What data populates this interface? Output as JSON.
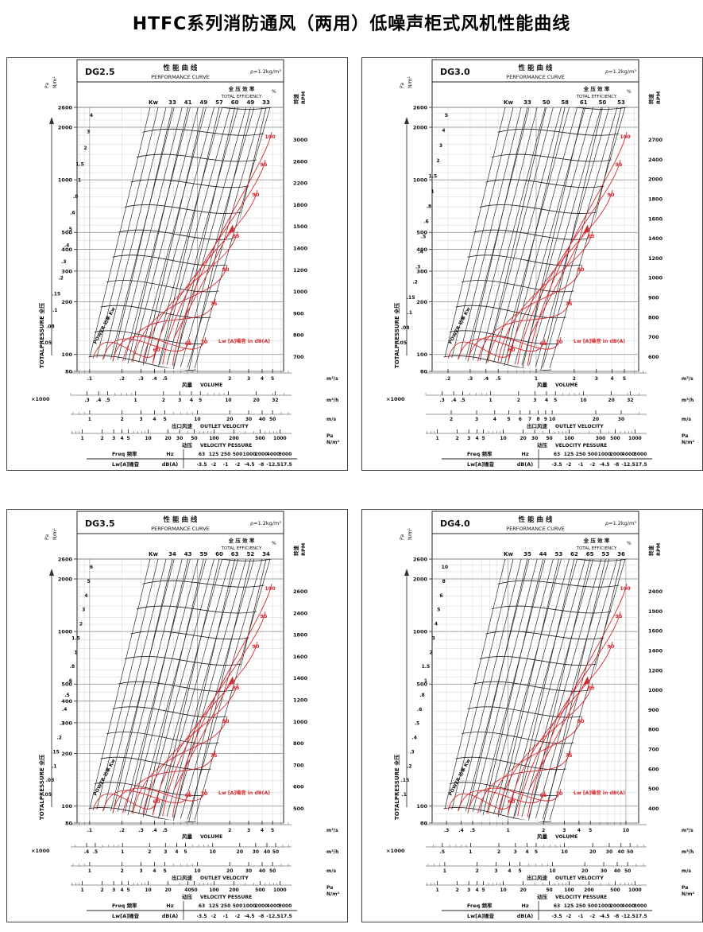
{
  "page": {
    "title": "HTFC系列消防通风（两用）低噪声柜式风机性能曲线"
  },
  "colors": {
    "accent_red": "#d9282d",
    "ink": "#111111",
    "grid_minor": "#c9c9c9",
    "grid_major": "#8a8a8a"
  },
  "common": {
    "perf_title_cn": "性 能 曲 线",
    "perf_title_en": "PERFORMANCE CURVE",
    "density": "ρ=1.2kg/m³",
    "eff_cn": "全 压 效 率",
    "eff_en": "TOTAL EFFICIENCY",
    "pct": "%",
    "kw": "Kw",
    "pa_unit": "Pa",
    "nm2_unit": "N/m²",
    "left_axis_label": "TOTALPRESSURE 全压",
    "right_axis_cn": "转速",
    "right_axis_en": "RPM",
    "power_label": "POWER 功率 Kw",
    "volume_cn": "风量",
    "volume_en": "VOLUME",
    "x1000": "×1000",
    "m3s": "m³/s",
    "m3h": "m³/h",
    "ms": "m/s",
    "outlet_cn": "出口风速",
    "outlet_en": "OUTLET  VELOCITY",
    "dyn_cn": "动压",
    "dyn_en": "VELOCITY  PESSURE",
    "lw_note": "Lw [A]噪音   in dB(A)",
    "red_labels": [
      "60",
      "65",
      "70",
      "75",
      "80",
      "85",
      "90",
      "95",
      "100"
    ],
    "noise_table": {
      "freq_label": "Freq 频率",
      "freq_unit": "Hz",
      "freqs": [
        "63",
        "125",
        "250",
        "500",
        "1000",
        "2000",
        "4000",
        "8000"
      ],
      "lw_label": "Lw[A]噪音",
      "lw_unit": "dB(A)",
      "lws": [
        "-3.5",
        "-2",
        "-1",
        "-2",
        "-4.5",
        "-8",
        "-12.5",
        "-17.5"
      ]
    }
  },
  "panels": [
    {
      "model": "DG2.5",
      "eff": [
        "33",
        "41",
        "49",
        "57",
        "60",
        "49",
        "33"
      ],
      "power": [
        "4",
        "3",
        "2",
        "1.5",
        "1",
        ".8",
        ".6",
        ".5",
        ".4",
        ".3",
        ".2",
        ".15",
        ".1",
        ".08",
        ".05"
      ],
      "rpm": [
        "3000",
        "2600",
        "2200",
        "1800",
        "1500",
        "1400",
        "1200",
        "1000",
        "900",
        "800",
        "700"
      ],
      "pressure": [
        "2600",
        "2000",
        "1000",
        "500",
        "400",
        "300",
        "200",
        "100",
        "80"
      ],
      "vol": [
        ".1",
        ".2",
        ".3",
        ".4",
        ".5",
        "2",
        "3",
        "4",
        "5"
      ],
      "m3h": [
        ".3",
        ".4",
        ".5",
        "1",
        "2",
        "3",
        "4",
        "5",
        "10",
        "20",
        "32"
      ],
      "ms": [
        "1",
        "2",
        "3",
        "4",
        "5",
        "10",
        "20",
        "30",
        "40",
        "50"
      ],
      "pa": [
        "1",
        "2",
        "3",
        "4",
        "5",
        "10",
        "20",
        "30",
        "50",
        "100",
        "200",
        "500",
        "1000"
      ]
    },
    {
      "model": "DG3.0",
      "eff": [
        "33",
        "50",
        "58",
        "61",
        "50",
        "53"
      ],
      "power": [
        "5",
        "4",
        "3",
        "2",
        "1.5",
        "1",
        ".8",
        ".6",
        ".5",
        ".4",
        ".3",
        ".2",
        ".15",
        ".1",
        ".08",
        ".05"
      ],
      "rpm": [
        "2700",
        "2400",
        "2000",
        "1800",
        "1600",
        "1400",
        "1200",
        "1000",
        "900",
        "800",
        "700",
        "600"
      ],
      "pressure": [
        "2600",
        "2000",
        "1000",
        "500",
        "400",
        "300",
        "200",
        "100",
        "80"
      ],
      "vol": [
        ".2",
        ".3",
        ".4",
        ".5",
        "1",
        "2",
        "3",
        "4",
        "5"
      ],
      "m3h": [
        ".3",
        ".4",
        ".5",
        "1",
        "2",
        "3",
        "4",
        "5",
        "10",
        "20",
        "32"
      ],
      "ms": [
        "2",
        "3",
        "4",
        "5",
        "6",
        "7",
        "8",
        "9",
        "10",
        "20",
        "30"
      ],
      "pa": [
        "1",
        "2",
        "3",
        "4",
        "5",
        "10",
        "20",
        "30",
        "50",
        "100",
        "300",
        "500",
        "1000"
      ]
    },
    {
      "model": "DG3.5",
      "eff": [
        "34",
        "43",
        "59",
        "60",
        "63",
        "52",
        "34"
      ],
      "power": [
        "6",
        "5",
        "4",
        "3",
        "2",
        "1.5",
        "1",
        ".8",
        ".6",
        ".5",
        ".4",
        ".3",
        ".2",
        ".15",
        ".1",
        ".08",
        ".05"
      ],
      "rpm": [
        "2600",
        "2400",
        "1800",
        "1600",
        "1400",
        "1200",
        "1000",
        "800",
        "700",
        "600",
        "500"
      ],
      "pressure": [
        "2600",
        "2000",
        "1000",
        "500",
        "400",
        "300",
        "200",
        "100",
        "80"
      ],
      "vol": [
        ".1",
        ".2",
        ".3",
        ".4",
        ".5",
        "2",
        "3",
        "4",
        "5"
      ],
      "m3h": [
        ".4",
        ".5",
        "1",
        "2",
        "3",
        "4",
        "5",
        "10",
        "20",
        "30",
        "40",
        "50"
      ],
      "ms": [
        "1",
        "2",
        "3",
        "4",
        "5",
        "10",
        "20",
        "30",
        "40",
        "50"
      ],
      "pa": [
        "1",
        "2",
        "3",
        "4",
        "5",
        "10",
        "20",
        "40",
        "50",
        "100",
        "200",
        "500",
        "1000"
      ]
    },
    {
      "model": "DG4.0",
      "eff": [
        "35",
        "44",
        "53",
        "62",
        "65",
        "53",
        "36"
      ],
      "power": [
        "10",
        "8",
        "6",
        "5",
        "4",
        "3",
        "2",
        "1.5",
        "1",
        ".8",
        ".6",
        ".5",
        ".4",
        ".3",
        ".2",
        ".15",
        ".1"
      ],
      "rpm": [
        "2400",
        "1900",
        "1600",
        "1400",
        "1200",
        "1000",
        "900",
        "800",
        "700",
        "600",
        "500",
        "400"
      ],
      "pressure": [
        "2600",
        "2000",
        "1000",
        "500",
        "100",
        "80"
      ],
      "vol": [
        ".3",
        ".4",
        ".5",
        "1",
        "2",
        "3",
        "4",
        "5",
        "10"
      ],
      "m3h": [
        ".5",
        "1",
        "2",
        "3",
        "4",
        "5",
        "10",
        "20",
        "30",
        "40",
        "50"
      ],
      "ms": [
        "1",
        "2",
        "3",
        "4",
        "5",
        "10",
        "20",
        "30",
        "40",
        "50"
      ],
      "pa": [
        "1",
        "2",
        "3",
        "4",
        "5",
        "10",
        "20",
        "50",
        "100",
        "200",
        "500",
        "1000"
      ]
    }
  ],
  "chart_data": [
    {
      "type": "line",
      "model": "DG2.5",
      "title": "性能曲线 PERFORMANCE CURVE",
      "air_density": "ρ=1.2kg/m³",
      "x_axis": {
        "label": "风量 VOLUME",
        "unit_primary": "m³/s",
        "ticks_m3s": [
          0.1,
          0.2,
          0.3,
          0.4,
          0.5,
          2,
          3,
          4,
          5
        ],
        "unit_secondary": "×1000 m³/h",
        "ticks_m3h": [
          0.3,
          0.4,
          0.5,
          1,
          2,
          3,
          4,
          5,
          10,
          20,
          32
        ],
        "scale": "log"
      },
      "y_axis": {
        "label": "全压 TOTALPRESSURE",
        "unit": "Pa (N/m²)",
        "ticks": [
          2600,
          2000,
          1000,
          500,
          400,
          300,
          200,
          100,
          80
        ],
        "scale": "log"
      },
      "rpm_axis": {
        "label": "转速 RPM",
        "ticks": [
          3000,
          2600,
          2200,
          1800,
          1500,
          1400,
          1200,
          1000,
          900,
          800,
          700
        ]
      },
      "total_efficiency_pct": [
        33,
        41,
        49,
        57,
        60,
        49,
        33
      ],
      "efficiency_contours_pct": [
        60,
        65,
        70,
        75,
        80,
        85,
        90,
        95,
        100
      ],
      "shaft_power_kw": [
        4,
        3,
        2,
        1.5,
        1,
        0.8,
        0.6,
        0.5,
        0.4,
        0.3,
        0.2,
        0.15,
        0.1,
        0.08,
        0.05
      ],
      "outlet_velocity_ms": [
        1,
        2,
        3,
        4,
        5,
        10,
        20,
        30,
        40,
        50
      ],
      "velocity_pressure_pa": [
        1,
        2,
        3,
        4,
        5,
        10,
        20,
        30,
        50,
        100,
        200,
        500,
        1000
      ],
      "noise_correction": {
        "freq_hz": [
          63,
          125,
          250,
          500,
          1000,
          2000,
          4000,
          8000
        ],
        "lw_dba": [
          -3.5,
          -2,
          -1,
          -2,
          -4.5,
          -8,
          -12.5,
          -17.5
        ]
      }
    },
    {
      "type": "line",
      "model": "DG3.0",
      "title": "性能曲线 PERFORMANCE CURVE",
      "air_density": "ρ=1.2kg/m³",
      "x_axis": {
        "label": "风量 VOLUME",
        "unit_primary": "m³/s",
        "ticks_m3s": [
          0.2,
          0.3,
          0.4,
          0.5,
          1,
          2,
          3,
          4,
          5
        ],
        "unit_secondary": "×1000 m³/h",
        "ticks_m3h": [
          0.3,
          0.4,
          0.5,
          1,
          2,
          3,
          4,
          5,
          10,
          20,
          32
        ],
        "scale": "log"
      },
      "y_axis": {
        "label": "全压 TOTALPRESSURE",
        "unit": "Pa (N/m²)",
        "ticks": [
          2600,
          2000,
          1000,
          500,
          400,
          300,
          200,
          100,
          80
        ],
        "scale": "log"
      },
      "rpm_axis": {
        "label": "转速 RPM",
        "ticks": [
          2700,
          2400,
          2000,
          1800,
          1600,
          1400,
          1200,
          1000,
          900,
          800,
          700,
          600
        ]
      },
      "total_efficiency_pct": [
        33,
        50,
        58,
        61,
        50,
        53
      ],
      "efficiency_contours_pct": [
        60,
        65,
        70,
        75,
        80,
        85,
        90,
        95,
        100
      ],
      "shaft_power_kw": [
        5,
        4,
        3,
        2,
        1.5,
        1,
        0.8,
        0.6,
        0.5,
        0.4,
        0.3,
        0.2,
        0.15,
        0.1,
        0.08,
        0.05
      ],
      "outlet_velocity_ms": [
        2,
        3,
        4,
        5,
        6,
        7,
        8,
        9,
        10,
        20,
        30
      ],
      "velocity_pressure_pa": [
        1,
        2,
        3,
        4,
        5,
        10,
        20,
        30,
        50,
        100,
        300,
        500,
        1000
      ],
      "noise_correction": {
        "freq_hz": [
          63,
          125,
          250,
          500,
          1000,
          2000,
          4000,
          8000
        ],
        "lw_dba": [
          -3.5,
          -2,
          -1,
          -2,
          -4.5,
          -8,
          -12.5,
          -17.5
        ]
      }
    },
    {
      "type": "line",
      "model": "DG3.5",
      "title": "性能曲线 PERFORMANCE CURVE",
      "air_density": "ρ=1.2kg/m³",
      "x_axis": {
        "label": "风量 VOLUME",
        "unit_primary": "m³/s",
        "ticks_m3s": [
          0.1,
          0.2,
          0.3,
          0.4,
          0.5,
          2,
          3,
          4,
          5
        ],
        "unit_secondary": "×1000 m³/h",
        "ticks_m3h": [
          0.4,
          0.5,
          1,
          2,
          3,
          4,
          5,
          10,
          20,
          30,
          40,
          50
        ],
        "scale": "log"
      },
      "y_axis": {
        "label": "全压 TOTALPRESSURE",
        "unit": "Pa (N/m²)",
        "ticks": [
          2600,
          2000,
          1000,
          500,
          400,
          300,
          200,
          100,
          80
        ],
        "scale": "log"
      },
      "rpm_axis": {
        "label": "转速 RPM",
        "ticks": [
          2600,
          2400,
          1800,
          1600,
          1400,
          1200,
          1000,
          800,
          700,
          600,
          500
        ]
      },
      "total_efficiency_pct": [
        34,
        43,
        59,
        60,
        63,
        52,
        34
      ],
      "efficiency_contours_pct": [
        60,
        65,
        70,
        75,
        80,
        85,
        90,
        95,
        100
      ],
      "shaft_power_kw": [
        6,
        5,
        4,
        3,
        2,
        1.5,
        1,
        0.8,
        0.6,
        0.5,
        0.4,
        0.3,
        0.2,
        0.15,
        0.1,
        0.08,
        0.05
      ],
      "outlet_velocity_ms": [
        1,
        2,
        3,
        4,
        5,
        10,
        20,
        30,
        40,
        50
      ],
      "velocity_pressure_pa": [
        1,
        2,
        3,
        4,
        5,
        10,
        20,
        40,
        50,
        100,
        200,
        500,
        1000
      ],
      "noise_correction": {
        "freq_hz": [
          63,
          125,
          250,
          500,
          1000,
          2000,
          4000,
          8000
        ],
        "lw_dba": [
          -3.5,
          -2,
          -1,
          -2,
          -4.5,
          -8,
          -12.5,
          -17.5
        ]
      }
    },
    {
      "type": "line",
      "model": "DG4.0",
      "title": "性能曲线 PERFORMANCE CURVE",
      "air_density": "ρ=1.2kg/m³",
      "x_axis": {
        "label": "风量 VOLUME",
        "unit_primary": "m³/s",
        "ticks_m3s": [
          0.3,
          0.4,
          0.5,
          1,
          2,
          3,
          4,
          5,
          10
        ],
        "unit_secondary": "×1000 m³/h",
        "ticks_m3h": [
          0.5,
          1,
          2,
          3,
          4,
          5,
          10,
          20,
          30,
          40,
          50
        ],
        "scale": "log"
      },
      "y_axis": {
        "label": "全压 TOTALPRESSURE",
        "unit": "Pa (N/m²)",
        "ticks": [
          2600,
          2000,
          1000,
          500,
          100,
          80
        ],
        "scale": "log"
      },
      "rpm_axis": {
        "label": "转速 RPM",
        "ticks": [
          2400,
          1900,
          1600,
          1400,
          1200,
          1000,
          900,
          800,
          700,
          600,
          500,
          400
        ]
      },
      "total_efficiency_pct": [
        35,
        44,
        53,
        62,
        65,
        53,
        36
      ],
      "efficiency_contours_pct": [
        60,
        65,
        70,
        75,
        80,
        85,
        90,
        95,
        100
      ],
      "shaft_power_kw": [
        10,
        8,
        6,
        5,
        4,
        3,
        2,
        1.5,
        1,
        0.8,
        0.6,
        0.5,
        0.4,
        0.3,
        0.2,
        0.15,
        0.1
      ],
      "outlet_velocity_ms": [
        1,
        2,
        3,
        4,
        5,
        10,
        20,
        30,
        40,
        50
      ],
      "velocity_pressure_pa": [
        1,
        2,
        3,
        4,
        5,
        10,
        20,
        50,
        100,
        200,
        500,
        1000
      ],
      "noise_correction": {
        "freq_hz": [
          63,
          125,
          250,
          500,
          1000,
          2000,
          4000,
          8000
        ],
        "lw_dba": [
          -3.5,
          -2,
          -1,
          -2,
          -4.5,
          -8,
          -12.5,
          -17.5
        ]
      }
    }
  ]
}
